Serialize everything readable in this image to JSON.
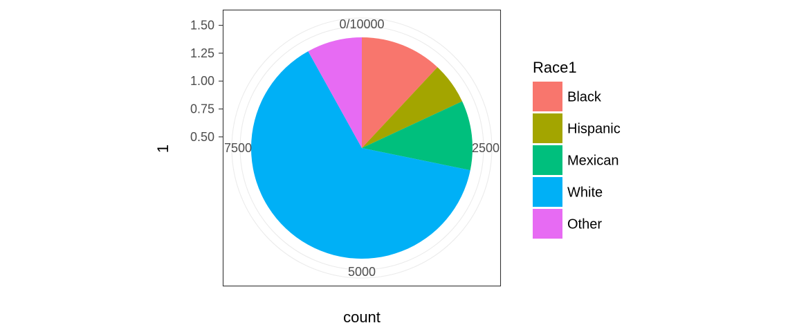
{
  "chart_data": {
    "type": "pie",
    "xlabel": "count",
    "ylabel": "1",
    "y_ticks": [
      "0.50",
      "0.75",
      "1.00",
      "1.25",
      "1.50"
    ],
    "y_tick_values": [
      0.5,
      0.75,
      1.0,
      1.25,
      1.5
    ],
    "radial_range": [
      0.4,
      1.7
    ],
    "angle_ticks": [
      "0/10000",
      "2500",
      "5000",
      "7500"
    ],
    "angle_tick_values": [
      0,
      2500,
      5000,
      7500
    ],
    "angle_total": 10000,
    "grid": true,
    "legend": {
      "title": "Race1",
      "position": "right"
    },
    "series": [
      {
        "name": "Black",
        "value": 1197,
        "color": "#F8766D"
      },
      {
        "name": "Hispanic",
        "value": 610,
        "color": "#A3A500"
      },
      {
        "name": "Mexican",
        "value": 1015,
        "color": "#00BF7D"
      },
      {
        "name": "White",
        "value": 6372,
        "color": "#00B0F6"
      },
      {
        "name": "Other",
        "value": 806,
        "color": "#E76BF3"
      }
    ]
  }
}
